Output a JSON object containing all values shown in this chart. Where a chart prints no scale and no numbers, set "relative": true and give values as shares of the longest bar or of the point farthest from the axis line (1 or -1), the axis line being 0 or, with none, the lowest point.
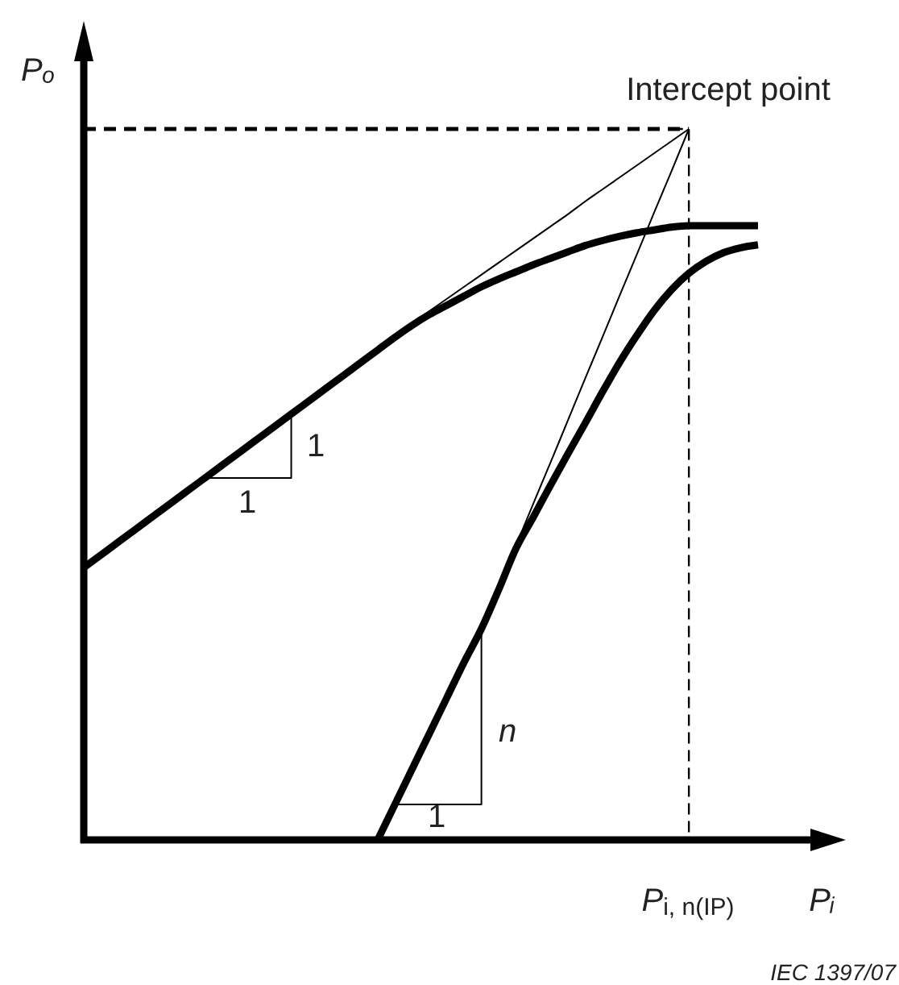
{
  "chart_data": {
    "type": "line",
    "relative": true,
    "xlabel": "Pᵢ",
    "ylabel": "Pₒ",
    "categories": [
      null,
      null,
      null,
      null,
      null,
      null,
      null,
      null,
      null,
      null,
      null,
      null,
      null,
      null,
      null,
      null,
      null,
      null,
      null,
      null,
      null,
      null,
      null,
      null,
      null,
      null,
      null,
      null,
      null,
      null,
      null,
      null,
      null,
      null,
      null,
      null,
      null,
      null,
      null,
      null
    ],
    "series": [
      {
        "color": "#000000",
        "values": [
          0.383,
          0.401,
          0.419,
          0.437,
          0.455,
          0.473,
          0.491,
          0.509,
          0.527,
          0.545,
          0.563,
          0.581,
          0.599,
          0.617,
          0.635,
          0.653,
          0.671,
          0.689,
          0.707,
          0.724,
          0.739,
          0.752,
          0.765,
          0.778,
          0.789,
          0.799,
          0.809,
          0.818,
          0.827,
          0.836,
          0.843,
          0.849,
          0.854,
          0.858,
          0.862,
          0.864,
          0.864,
          0.864,
          0.864,
          0.864
        ]
      },
      {
        "color": "#000000",
        "values": [
          null,
          null,
          null,
          null,
          null,
          null,
          null,
          null,
          null,
          null,
          null,
          null,
          null,
          null,
          null,
          null,
          null,
          0,
          0.05,
          0.1,
          0.15,
          0.2,
          0.25,
          0.297,
          0.352,
          0.41,
          0.454,
          0.499,
          0.543,
          0.586,
          0.63,
          0.672,
          0.71,
          0.745,
          0.774,
          0.797,
          0.814,
          0.826,
          0.833,
          0.837
        ]
      },
      {
        "color": "#000000",
        "values": [
          null,
          null,
          null,
          null,
          null,
          null,
          null,
          null,
          null,
          null,
          null,
          null,
          null,
          null,
          null,
          null,
          null,
          null,
          0.71,
          0.727,
          0.744,
          0.761,
          0.778,
          0.795,
          0.812,
          0.829,
          0.846,
          0.863,
          0.88,
          0.898,
          0.915,
          0.932,
          0.949,
          0.966,
          0.983,
          1,
          null,
          null,
          null,
          null
        ]
      },
      {
        "color": "#000000",
        "values": [
          null,
          null,
          null,
          null,
          null,
          null,
          null,
          null,
          null,
          null,
          null,
          null,
          null,
          null,
          null,
          null,
          null,
          null,
          null,
          null,
          null,
          null,
          null,
          0.297,
          0.356,
          0.414,
          0.473,
          0.531,
          0.59,
          0.649,
          0.707,
          0.766,
          0.824,
          0.883,
          0.941,
          1,
          null,
          null,
          null,
          null
        ]
      },
      {
        "color": "#000000",
        "line_style": "dashed",
        "values": [
          1,
          1,
          1,
          1,
          1,
          1,
          1,
          1,
          1,
          1,
          1,
          1,
          1,
          1,
          1,
          1,
          1,
          1,
          1,
          1,
          1,
          1,
          1,
          1,
          1,
          1,
          1,
          1,
          1,
          1,
          1,
          1,
          1,
          1,
          1,
          1,
          null,
          null,
          null,
          null
        ]
      },
      {
        "type": "step",
        "color": "#000000",
        "values": [
          null,
          null,
          null,
          null,
          null,
          null,
          null,
          0.509,
          0.509,
          0.509,
          0.509,
          0.509,
          0.599,
          null,
          null,
          null,
          null,
          null,
          null,
          null,
          null,
          null,
          null,
          null,
          null,
          null,
          null,
          null,
          null,
          null,
          null,
          null,
          null,
          null,
          null,
          null,
          null,
          null,
          null,
          null
        ]
      },
      {
        "type": "step",
        "color": "#000000",
        "values": [
          null,
          null,
          null,
          null,
          null,
          null,
          null,
          null,
          null,
          null,
          null,
          null,
          null,
          null,
          null,
          null,
          null,
          null,
          0.05,
          0.05,
          0.05,
          0.05,
          0.05,
          0.297,
          null,
          null,
          null,
          null,
          null,
          null,
          null,
          null,
          null,
          null,
          null,
          null,
          null,
          null,
          null,
          null
        ]
      },
      {
        "type": "step",
        "color": "#000000",
        "line_style": "dashed",
        "values": [
          null,
          null,
          null,
          null,
          null,
          null,
          null,
          null,
          null,
          null,
          null,
          null,
          null,
          null,
          null,
          null,
          null,
          null,
          null,
          null,
          null,
          null,
          null,
          null,
          null,
          null,
          null,
          null,
          null,
          null,
          null,
          null,
          null,
          null,
          1,
          0,
          null,
          null,
          null,
          null
        ]
      }
    ],
    "annotations": [
      "Intercept point",
      "1",
      "1",
      "n",
      "1",
      "P$_{i, n(IP)}$",
      "IEC 1397/07"
    ]
  }
}
